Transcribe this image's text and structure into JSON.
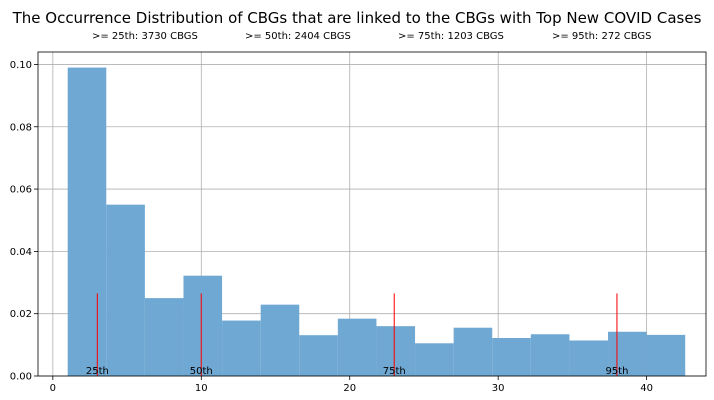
{
  "chart_data": {
    "type": "histogram",
    "title": "The Occurrence Distribution of CBGs that are linked to the CBGs with Top New COVID Cases",
    "percentile_summaries": [
      ">= 25th: 3730 CBGS",
      ">= 50th: 2404 CBGS",
      ">= 75th: 1203 CBGS",
      ">= 95th: 272 CBGS"
    ],
    "bins": [
      {
        "x0": 1.0,
        "x1": 3.6,
        "value": 0.099
      },
      {
        "x0": 3.6,
        "x1": 6.2,
        "value": 0.055
      },
      {
        "x0": 6.2,
        "x1": 8.8,
        "value": 0.025
      },
      {
        "x0": 8.8,
        "x1": 11.4,
        "value": 0.0322
      },
      {
        "x0": 11.4,
        "x1": 14.0,
        "value": 0.0178
      },
      {
        "x0": 14.0,
        "x1": 16.6,
        "value": 0.0229
      },
      {
        "x0": 16.6,
        "x1": 19.2,
        "value": 0.0131
      },
      {
        "x0": 19.2,
        "x1": 21.8,
        "value": 0.0184
      },
      {
        "x0": 21.8,
        "x1": 24.4,
        "value": 0.016
      },
      {
        "x0": 24.4,
        "x1": 27.0,
        "value": 0.0105
      },
      {
        "x0": 27.0,
        "x1": 29.6,
        "value": 0.0155
      },
      {
        "x0": 29.6,
        "x1": 32.2,
        "value": 0.0122
      },
      {
        "x0": 32.2,
        "x1": 34.8,
        "value": 0.0134
      },
      {
        "x0": 34.8,
        "x1": 37.4,
        "value": 0.0114
      },
      {
        "x0": 37.4,
        "x1": 40.0,
        "value": 0.0142
      },
      {
        "x0": 40.0,
        "x1": 42.6,
        "value": 0.0132
      }
    ],
    "percentile_lines": [
      {
        "label": "25th",
        "x": 3,
        "height": 0.0265
      },
      {
        "label": "50th",
        "x": 10,
        "height": 0.0265
      },
      {
        "label": "75th",
        "x": 23,
        "height": 0.0265
      },
      {
        "label": "95th",
        "x": 38,
        "height": 0.0265
      }
    ],
    "xlim": [
      -1,
      44
    ],
    "ylim": [
      0,
      0.104
    ],
    "x_ticks": [
      0,
      10,
      20,
      30,
      40
    ],
    "y_ticks": [
      0.0,
      0.02,
      0.04,
      0.06,
      0.08,
      0.1
    ],
    "x_tick_labels": [
      "0",
      "10",
      "20",
      "30",
      "40"
    ],
    "y_tick_labels": [
      "0.00",
      "0.02",
      "0.04",
      "0.06",
      "0.08",
      "0.10"
    ],
    "grid": true,
    "colors": {
      "bar": "#6fa8d2",
      "percentile_line": "#ff0000",
      "grid": "#b0b0b0",
      "axis": "#000000"
    }
  }
}
